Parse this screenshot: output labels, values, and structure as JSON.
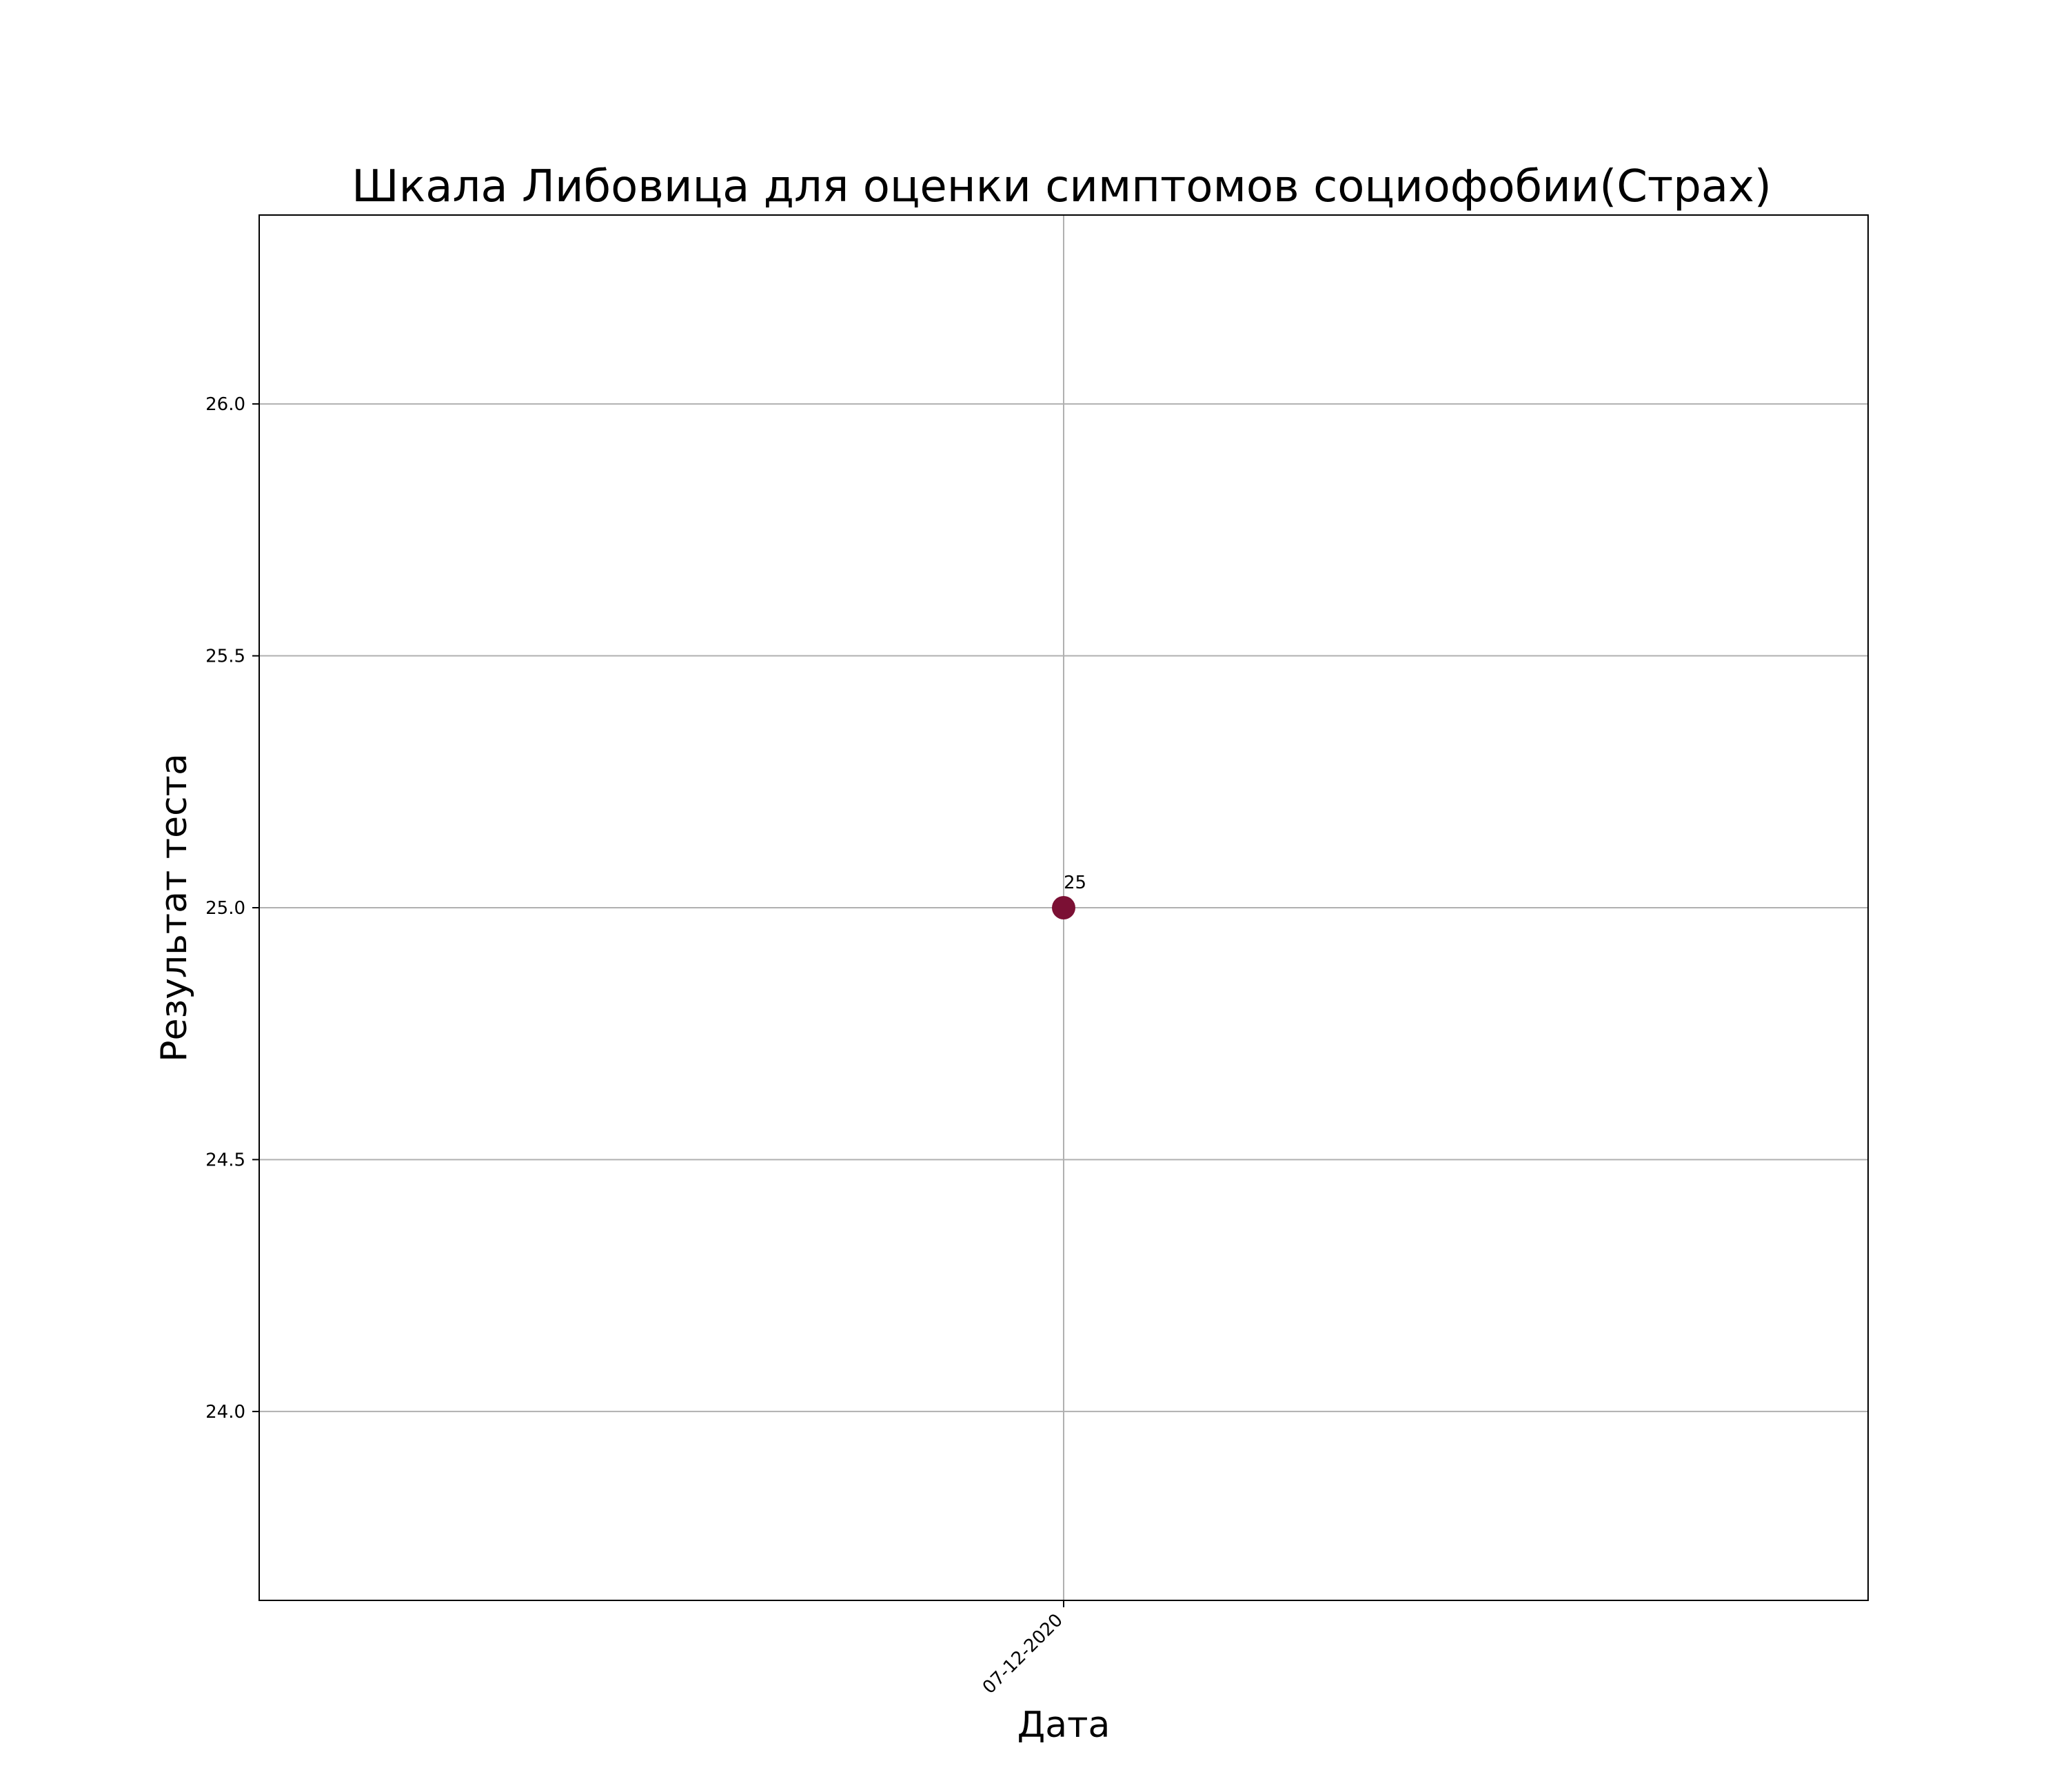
{
  "chart_data": {
    "type": "scatter",
    "title": "Шкала Либовица для оценки симптомов социофобии(Страх)",
    "xlabel": "Дата",
    "ylabel": "Результат теста",
    "x_categories": [
      "07-12-2020"
    ],
    "series": [
      {
        "points": [
          {
            "x": "07-12-2020",
            "y": 25,
            "label": "25"
          }
        ],
        "color": "#7b1034"
      }
    ],
    "ylim": [
      23.625,
      26.375
    ],
    "yticks": [
      24.0,
      24.5,
      25.0,
      25.5,
      26.0
    ],
    "ytick_labels": [
      "24.0",
      "24.5",
      "25.0",
      "25.5",
      "26.0"
    ],
    "grid": true,
    "legend": "none"
  }
}
